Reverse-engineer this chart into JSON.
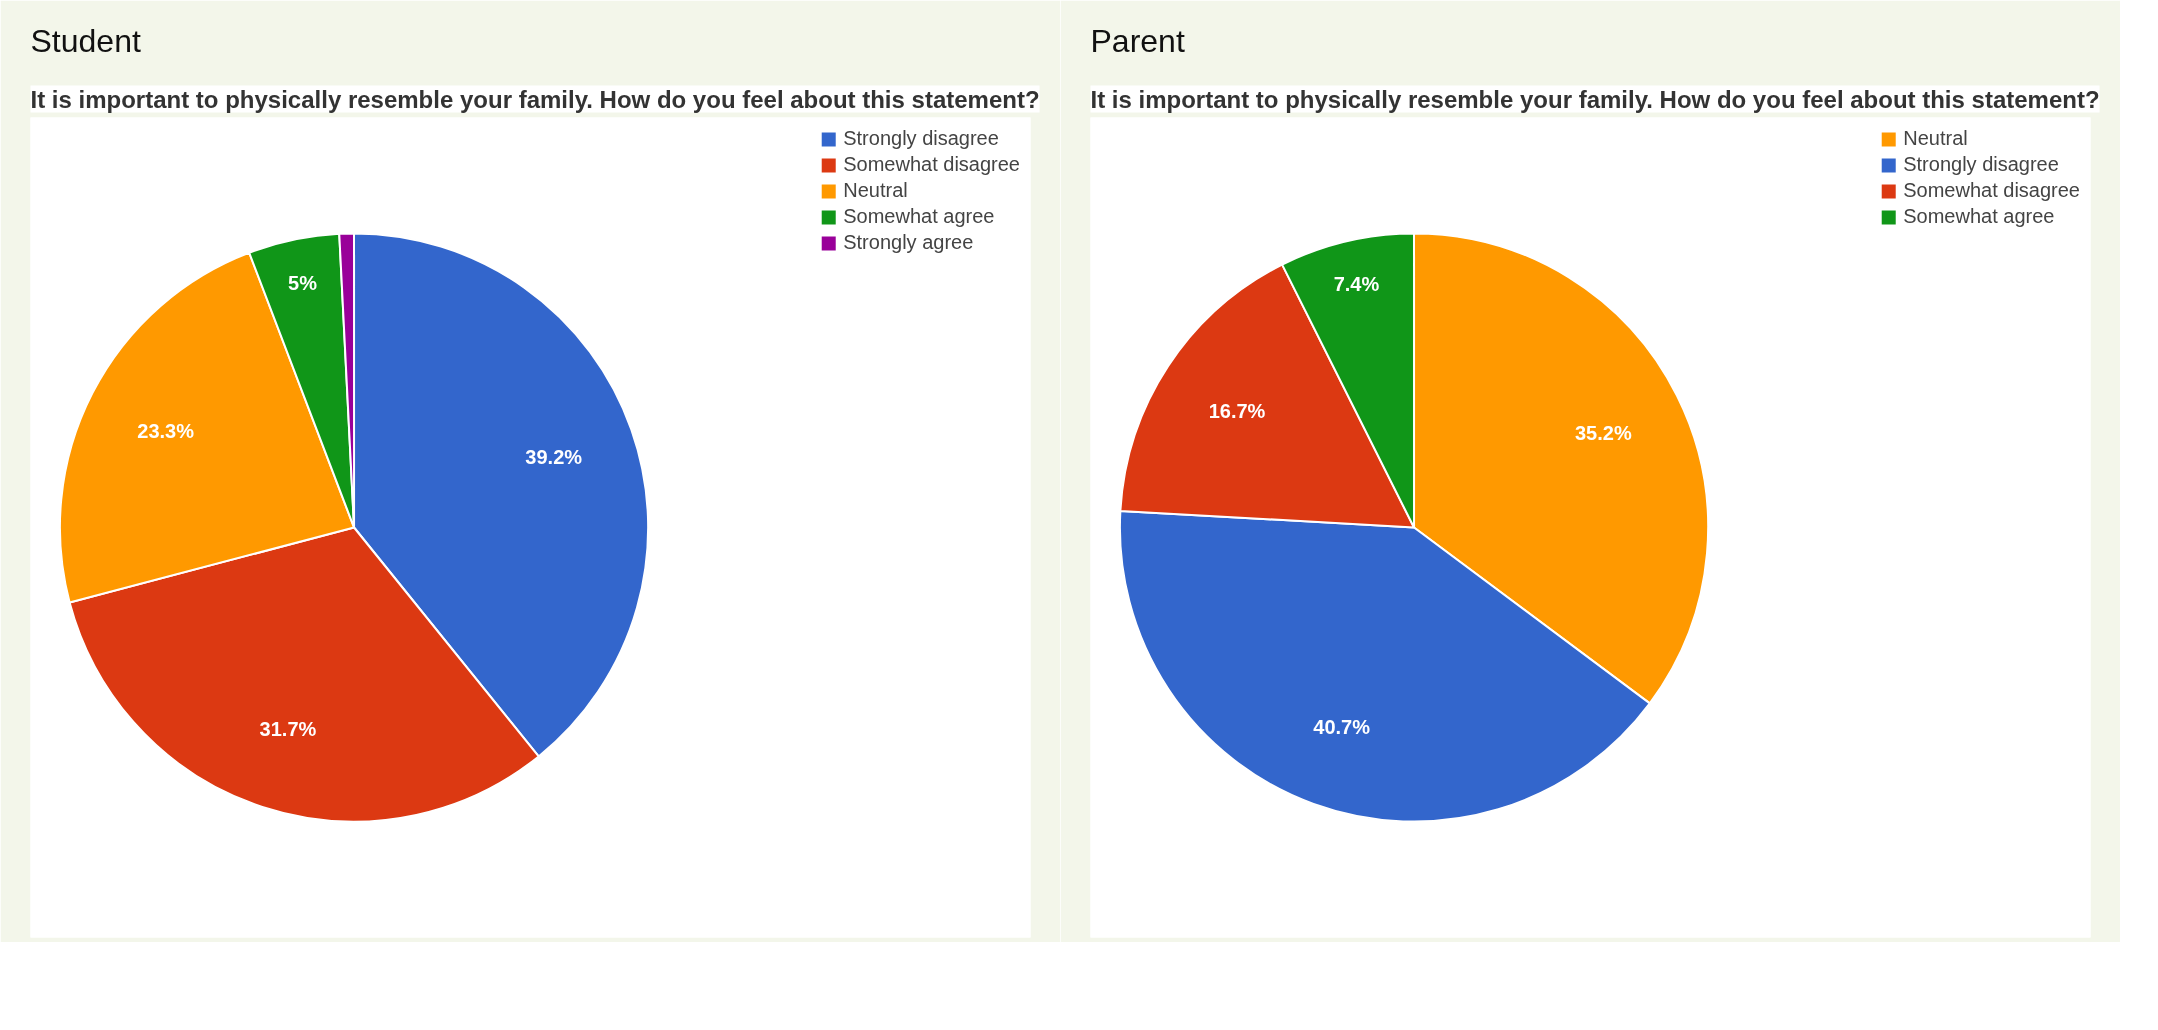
{
  "chart_data": [
    {
      "type": "pie",
      "title": "Student",
      "subtitle": "It is important to physically resemble your family. How do you feel about this statement?",
      "categories": [
        "Strongly disagree",
        "Somewhat disagree",
        "Neutral",
        "Somewhat agree",
        "Strongly agree"
      ],
      "values": [
        39.2,
        31.7,
        23.3,
        5,
        0.8
      ],
      "colors": [
        "#3366cc",
        "#dc3912",
        "#ff9900",
        "#109618",
        "#990099"
      ],
      "value_labels": [
        "39.2%",
        "31.7%",
        "23.3%",
        "5%",
        null
      ],
      "legend": "right"
    },
    {
      "type": "pie",
      "title": "Parent",
      "subtitle": "It is important to physically resemble your family. How do you feel about this statement?",
      "categories": [
        "Neutral",
        "Strongly disagree",
        "Somewhat disagree",
        "Somewhat agree"
      ],
      "values": [
        35.2,
        40.7,
        16.7,
        7.4
      ],
      "colors": [
        "#ff9900",
        "#3366cc",
        "#dc3912",
        "#109618"
      ],
      "value_labels": [
        "35.2%",
        "40.7%",
        "16.7%",
        "7.4%"
      ],
      "legend": "right"
    }
  ]
}
